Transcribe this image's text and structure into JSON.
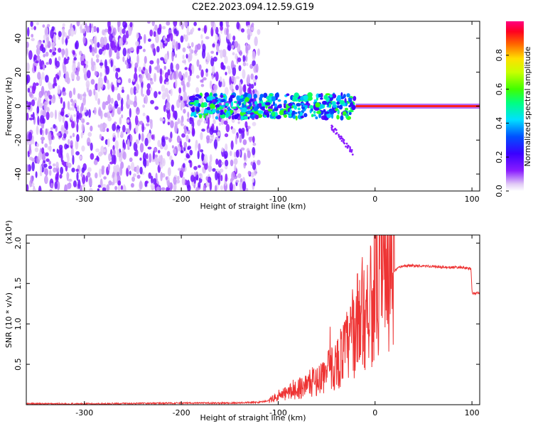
{
  "title": "C2E2.2023.094.12.59.G19",
  "chart_data": [
    {
      "type": "heatmap",
      "xlabel": "Height of straight line (km)",
      "ylabel": "Frequency (Hz)",
      "xlim": [
        -360,
        108
      ],
      "ylim": [
        -50,
        50
      ],
      "xticks": [
        -300,
        -200,
        -100,
        0,
        100
      ],
      "yticks": [
        -40,
        -20,
        0,
        20,
        40
      ],
      "colorbar": {
        "label": "Normalized spectral amplitude",
        "range": [
          0.0,
          1.0
        ],
        "ticks": [
          "0.0",
          "0.2",
          "0.4",
          "0.6",
          "0.8"
        ],
        "colormap": "rainbow (white-violet-blue-cyan-green-yellow-red-magenta)"
      },
      "features": [
        {
          "height_range_km": [
            -360,
            -120
          ],
          "frequency_range_hz": [
            -50,
            50
          ],
          "amplitude": "0.0-0.15 (noise)"
        },
        {
          "height_range_km": [
            -190,
            -20
          ],
          "frequency_range_hz": [
            -8,
            6
          ],
          "amplitude": "0.1-0.6"
        },
        {
          "height_range_km": [
            -20,
            108
          ],
          "frequency_range_hz": [
            -1,
            1
          ],
          "amplitude": "0.9-1.0"
        }
      ]
    },
    {
      "type": "line",
      "xlabel": "Height of straight line (km)",
      "ylabel": "SNR (10 * v/v)",
      "scale_label": "(x10⁴)",
      "xlim": [
        -360,
        108
      ],
      "ylim": [
        0,
        2.1
      ],
      "xticks": [
        -300,
        -200,
        -100,
        0,
        100
      ],
      "yticks": [
        "0.5",
        "1.0",
        "1.5",
        "2.0"
      ],
      "series": [
        {
          "color": "#ee3333",
          "x": [
            -360,
            -300,
            -200,
            -150,
            -120,
            -110,
            -100,
            -90,
            -80,
            -70,
            -60,
            -50,
            -40,
            -30,
            -25,
            -20,
            -15,
            -10,
            -5,
            0,
            5,
            10,
            15,
            20,
            25,
            30,
            40,
            50,
            60,
            70,
            80,
            90,
            99,
            100,
            101,
            108
          ],
          "y": [
            0.01,
            0.01,
            0.02,
            0.02,
            0.03,
            0.05,
            0.1,
            0.15,
            0.2,
            0.25,
            0.3,
            0.4,
            0.5,
            0.7,
            0.8,
            0.95,
            1.1,
            1.2,
            1.3,
            1.35,
            1.45,
            1.55,
            1.6,
            1.65,
            1.7,
            1.72,
            1.72,
            1.72,
            1.71,
            1.7,
            1.7,
            1.7,
            1.68,
            1.4,
            1.38,
            1.38
          ]
        }
      ]
    }
  ]
}
